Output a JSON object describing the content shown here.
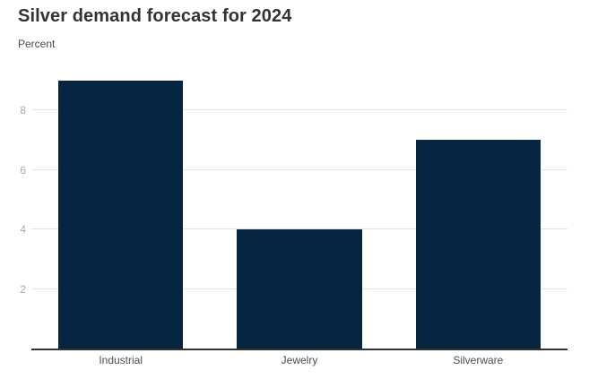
{
  "header": {
    "title": "Silver demand forecast for 2024",
    "subtitle": "Percent"
  },
  "chart_data": {
    "type": "bar",
    "categories": [
      "Industrial",
      "Jewelry",
      "Silverware"
    ],
    "values": [
      9,
      4,
      7
    ],
    "title": "Silver demand forecast for 2024",
    "xlabel": "",
    "ylabel": "Percent",
    "ylim": [
      0,
      9.6
    ],
    "yticks": [
      2,
      4,
      6,
      8
    ],
    "grid": true,
    "legend": false
  },
  "colors": {
    "bar": "#04243f",
    "axis_line": "#333333",
    "gridline": "#e3e3e3",
    "y_tick_label": "#ababab",
    "x_axis_label": "#4d4d4d",
    "title": "#333333",
    "subtitle": "#4a4a4a",
    "background": "#ffffff"
  }
}
